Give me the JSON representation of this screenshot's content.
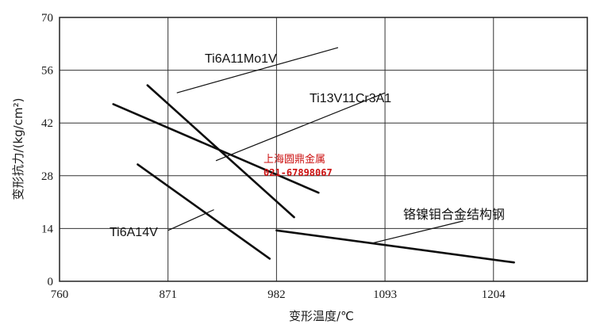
{
  "chart_data": {
    "type": "line",
    "xlabel": "变形温度/℃",
    "ylabel": "变形抗力/(kg/cm²)",
    "xlim": [
      760,
      1300
    ],
    "ylim": [
      0,
      70
    ],
    "x_ticks": [
      760,
      871,
      982,
      1093,
      1204
    ],
    "y_ticks": [
      0,
      14,
      28,
      42,
      56,
      70
    ],
    "grid": true,
    "series": [
      {
        "name": "Ti6A11Mo1V",
        "x": [
          850,
          1000
        ],
        "y": [
          52,
          17
        ]
      },
      {
        "name": "Ti13V11Cr3A1",
        "x": [
          815,
          1025
        ],
        "y": [
          47,
          23.5
        ]
      },
      {
        "name": "Ti6A14V",
        "x": [
          840,
          975
        ],
        "y": [
          31,
          6
        ]
      },
      {
        "name": "铬镍钼合金结构钢",
        "x": [
          982,
          1225
        ],
        "y": [
          13.5,
          5
        ]
      }
    ],
    "annotations": [
      "Ti6A11Mo1V",
      "Ti13V11Cr3A1",
      "Ti6A14V",
      "铬镍钼合金结构钢"
    ]
  },
  "watermark": {
    "line1": "上海圆鼎金属",
    "line2": "021-67898067",
    "color": "#cc1111"
  }
}
